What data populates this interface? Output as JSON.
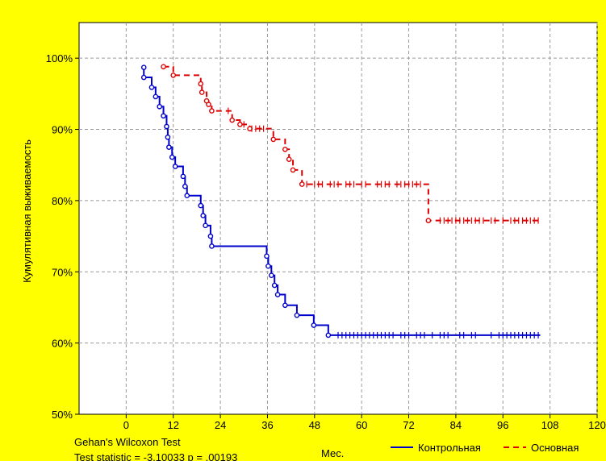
{
  "chart_data": {
    "type": "line",
    "subtype": "kaplan-meier survival curve",
    "xlabel": "Мес.",
    "ylabel": "Кумулятивная выживаемость",
    "xlim": [
      -12,
      120
    ],
    "ylim": [
      50,
      105
    ],
    "x_ticks": [
      "0",
      "12",
      "24",
      "36",
      "48",
      "60",
      "72",
      "84",
      "96",
      "108",
      "120"
    ],
    "x_tick_values": [
      0,
      12,
      24,
      36,
      48,
      60,
      72,
      84,
      96,
      108,
      120
    ],
    "y_ticks": [
      "50%",
      "60%",
      "70%",
      "80%",
      "90%",
      "100%"
    ],
    "y_tick_values": [
      50,
      60,
      70,
      80,
      90,
      100
    ],
    "grid": true,
    "legend_position": "bottom-right",
    "series": [
      {
        "name": "Контрольная",
        "color": "#0000cc",
        "line_style": "solid",
        "steps": [
          [
            4.5,
            98.7
          ],
          [
            4.5,
            97.3
          ],
          [
            6.5,
            95.9
          ],
          [
            7.5,
            94.6
          ],
          [
            8.5,
            93.2
          ],
          [
            9.5,
            91.9
          ],
          [
            10.3,
            90.4
          ],
          [
            10.6,
            88.9
          ],
          [
            10.9,
            87.5
          ],
          [
            11.7,
            86.1
          ],
          [
            12.5,
            84.8
          ],
          [
            14.5,
            83.4
          ],
          [
            15,
            82
          ],
          [
            15.5,
            80.7
          ],
          [
            19,
            79.3
          ],
          [
            19.6,
            77.9
          ],
          [
            20.2,
            76.5
          ],
          [
            21.5,
            75
          ],
          [
            21.8,
            73.6
          ],
          [
            35.8,
            72.2
          ],
          [
            36.2,
            70.8
          ],
          [
            37,
            69.5
          ],
          [
            37.8,
            68.1
          ],
          [
            38.6,
            66.8
          ],
          [
            40.5,
            65.3
          ],
          [
            43.5,
            63.9
          ],
          [
            47.8,
            62.5
          ],
          [
            51.5,
            61.1
          ],
          [
            105.5,
            61.1
          ]
        ],
        "censored_x": [
          54,
          55,
          56,
          57,
          58,
          59,
          60,
          61,
          62,
          63,
          64,
          65,
          66,
          67,
          68,
          70,
          71,
          72,
          74,
          75,
          76,
          78,
          80,
          81,
          82,
          85,
          86,
          88,
          89,
          93,
          95,
          96,
          97,
          98,
          99,
          100,
          101,
          102,
          103,
          104,
          105
        ]
      },
      {
        "name": "Основная",
        "color": "#dd0000",
        "line_style": "dashed",
        "steps": [
          [
            9.5,
            98.8
          ],
          [
            12,
            97.6
          ],
          [
            19,
            96.4
          ],
          [
            19.3,
            95.2
          ],
          [
            20.5,
            94
          ],
          [
            21,
            93.5
          ],
          [
            21.8,
            92.6
          ],
          [
            27,
            91.3
          ],
          [
            29,
            90.7
          ],
          [
            31.5,
            90.1
          ],
          [
            37.5,
            88.6
          ],
          [
            40.5,
            87.2
          ],
          [
            41.5,
            85.8
          ],
          [
            42.5,
            84.3
          ],
          [
            44.8,
            82.3
          ],
          [
            77,
            77.2
          ],
          [
            105.5,
            77.2
          ]
        ],
        "censored_x": [
          26,
          30,
          32,
          33,
          34,
          35,
          46,
          48,
          49,
          50,
          52,
          53,
          54,
          56,
          57,
          58,
          60,
          61,
          64,
          65,
          66,
          67,
          69,
          70,
          71,
          72,
          73,
          74,
          75,
          80,
          81,
          82,
          83,
          84,
          85,
          86,
          87,
          88,
          89,
          90,
          91,
          93,
          94,
          96,
          98,
          99,
          100,
          101,
          102,
          103,
          104,
          105
        ]
      }
    ],
    "annotations": {
      "test_name": "Gehan's Wilcoxon Test",
      "test_stat": "Test statistic = -3,10033 p = ,00193"
    }
  }
}
